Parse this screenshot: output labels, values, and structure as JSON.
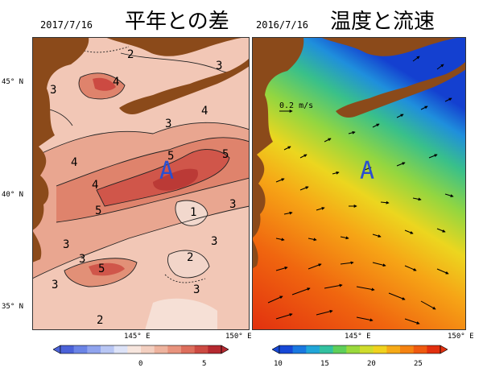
{
  "left_panel": {
    "date": "2017/7/16",
    "title": "平年との差",
    "marker": "A",
    "contour_labels": [
      "2",
      "3",
      "4",
      "5",
      "1"
    ],
    "colorbar_ticks": [
      "0",
      "5"
    ],
    "colorbar_colors": [
      "#4b62d8",
      "#6b84e6",
      "#90a4ee",
      "#b8c6f4",
      "#dde3f8",
      "#f7e6de",
      "#f3cfc0",
      "#eeb39e",
      "#e8937d",
      "#dd6e5c",
      "#cc4a42",
      "#b52930"
    ]
  },
  "right_panel": {
    "date": "2016/7/16",
    "title": "温度と流速",
    "marker": "A",
    "vector_scale": "0.2 m/s",
    "colorbar_ticks": [
      "10",
      "15",
      "20",
      "25"
    ],
    "colorbar_colors": [
      "#1748d6",
      "#1a78e0",
      "#21a6d8",
      "#33c1a0",
      "#5fcf5a",
      "#9ad93c",
      "#cfdc2c",
      "#f0d21e",
      "#f6aa17",
      "#f58211",
      "#ef5a10",
      "#e2300f"
    ]
  },
  "axes": {
    "lat_labels": [
      "45° N",
      "40° N",
      "35° N"
    ],
    "lon_labels_left": [
      "145° E",
      "150° E"
    ],
    "lon_labels_right": [
      "145° E",
      "150° E"
    ]
  },
  "colors": {
    "land": "#8b4a1a",
    "anomaly_low": "#f6ddd3",
    "anomaly_mid": "#e8a08a",
    "anomaly_high": "#c64a42",
    "marker": "#2a4fd0"
  }
}
